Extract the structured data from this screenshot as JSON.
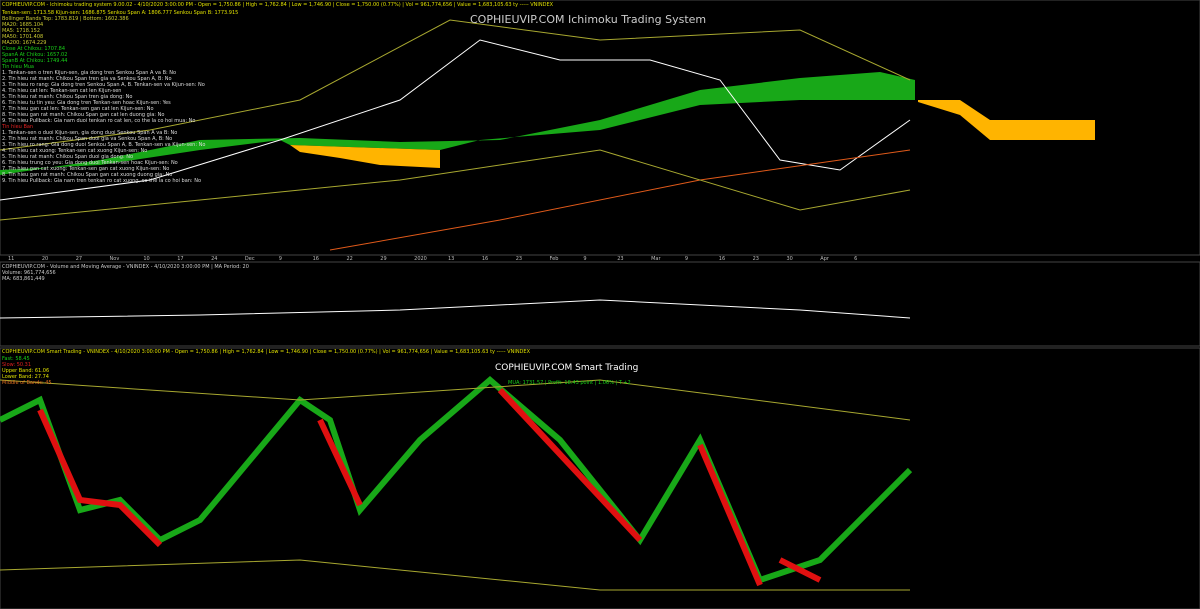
{
  "ichimoku": {
    "title": "COPHIEUVIP.COM Ichimoku Trading System",
    "header": "COPHIEUVIP.COM - Ichimoku trading system 9.00.02 - 4/10/2020 3:00:00 PM - Open = 1,750.86 | High = 1,762.84 | Low = 1,746.90 | Close = 1,750.00 (0.77%) | Vol = 961,774,656 | Value = 1,683,105.63 ty ----- VNINDEX",
    "indicators": [
      "Tenkan-sen: 1713.58  Kijun-sen: 1686.875  Senkou Span A: 1806.777  Senkou Span B: 1773.915",
      "Bollinger Bands Top: 1783.819 | Bottom: 1602.386",
      "MA20: 1685.104",
      "MA5: 1718.152",
      "MA50: 1701.408",
      "MA200: 1674.229",
      "Close At Chikou: 1707.84",
      "SpanA At Chikou: 1657.02",
      "SpanB At Chikou: 1749.44",
      "Tin hieu Mua"
    ],
    "buy_signals": [
      "1. Tenkan-sen o tren Kijun-sen, gia dong tren Senkou Span A va B: No",
      "2. Tin hieu rat manh: Chikou Span tren gia va Senkou Span A, B: No",
      "3. Tin hieu ro rang: Gia dong tren Senkou Span A, B. Tenkan-sen va Kijun-sen: No",
      "4. Tin hieu cat len: Tenkan-sen cat len Kijun-sen",
      "5. Tin hieu rat manh: Chikou Span tren gia dong: No",
      "6. Tin hieu tu tin yeu: Gia dong tren Tenkan-sen hoac Kijun-sen: Yes",
      "7. Tin hieu gan cat len: Tenkan-sen gan cat len Kijun-sen: No",
      "8. Tin hieu gan rat manh: Chikou Span gan cat len duong gia: No",
      "9. Tin hieu Pullback: Gia nam duoi tenkan ro cat len, co the la co hoi mua: No"
    ],
    "sell_header": "Tin hieu Ban",
    "sell_signals": [
      "1. Tenkan-sen o duoi Kijun-sen, gia dong duoi Senkou Span A va B: No",
      "2. Tin hieu rat manh: Chikou Span duoi gia va Senkou Span A, B: No",
      "3. Tin hieu ro rang: Gia dong duoi Senkou Span A, B. Tenkan-sen va Kijun-sen: No",
      "4. Tin hieu cat xuong: Tenkan-sen cat xuong Kijun-sen: No",
      "5. Tin hieu rat manh: Chikou Span duoi gia dong: No",
      "6. Tin hieu trung co yeu: Gia dong duoi Tenkan-sen hoac Kijun-sen: No",
      "7. Tin hieu gan cat xuong: Tenkan-sen gan cat xuong Kijun-sen: No",
      "8. Tin hieu gan rat manh: Chikou Span gan cat xuong duong gia: No",
      "9. Tin hieu Pullback: Gia nam tren tenkan ro cat xuong, co the la co hoi ban: No"
    ],
    "x_labels": [
      "11",
      "20",
      "27",
      "Nov",
      "10",
      "17",
      "24",
      "Dec",
      "9",
      "16",
      "22",
      "29",
      "2020",
      "13",
      "16",
      "23",
      "Feb",
      "9",
      "23",
      "Mar",
      "9",
      "16",
      "23",
      "30",
      "Apr",
      "6"
    ]
  },
  "volume": {
    "header": "COPHIEUVIP.COM - Volume and Moving Average - VNINDEX - 4/10/2020 3:00:00 PM | MA Period: 20",
    "volume": "Volume: 961,774,656",
    "ma": "MA: 683,861,449"
  },
  "smart": {
    "header": "COPHIEUVIP.COM Smart Trading - VNINDEX - 4/10/2020 3:00:00 PM - Open = 1,750.86 | High = 1,762.84 | Low = 1,746.90 | Close = 1,750.00 (0.77%) | Vol = 961,774,656 | Value = 1,683,105.63 ty ----- VNINDEX",
    "title": "COPHIEUVIP.COM Smart Trading",
    "signal": "MUA: 1731.57 | Profit: 18.43 point | 1.06% | T +2",
    "legend": [
      "Fast: 58.45",
      "Slow: 50.31",
      "Upper Band: 61.06",
      "Lower Band: 27.74",
      "Middle of Bands: 45"
    ]
  }
}
